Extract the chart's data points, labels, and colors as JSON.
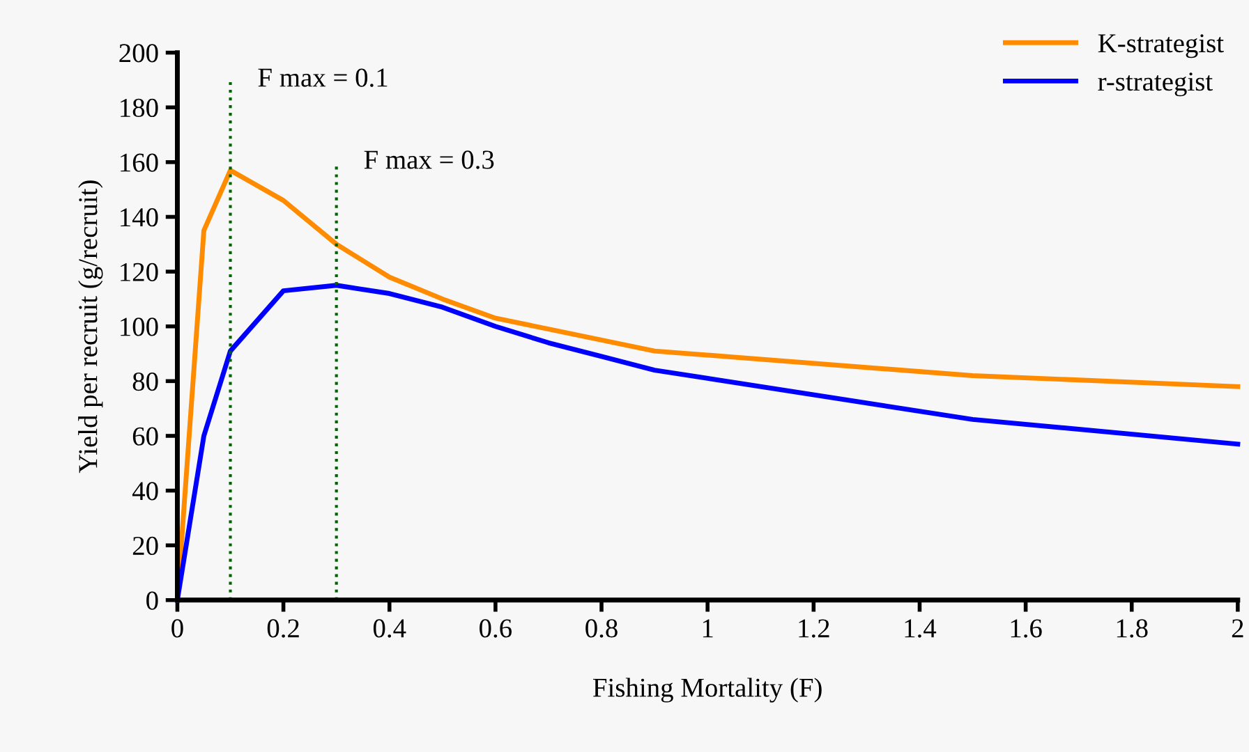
{
  "chart_data": {
    "type": "line",
    "xlabel": "Fishing Mortality (F)",
    "ylabel": "Yield per recruit (g/recruit)",
    "x": [
      0,
      0.05,
      0.1,
      0.2,
      0.3,
      0.4,
      0.5,
      0.6,
      0.7,
      0.8,
      0.9,
      1.5,
      2
    ],
    "series": [
      {
        "name": "K-strategist",
        "color": "#ff8c00",
        "values": [
          0,
          135,
          157,
          146,
          130,
          118,
          110,
          103,
          99,
          95,
          91,
          82,
          78
        ]
      },
      {
        "name": "r-strategist",
        "color": "#0000ff",
        "values": [
          0,
          60,
          91,
          113,
          115,
          112,
          107,
          100,
          94,
          89,
          84,
          66,
          57
        ]
      }
    ],
    "xlim": [
      0,
      2
    ],
    "xticks": [
      0,
      0.2,
      0.4,
      0.6,
      0.8,
      1,
      1.2,
      1.4,
      1.6,
      1.8,
      2
    ],
    "ylim": [
      0,
      200
    ],
    "yticks": [
      0,
      20,
      40,
      60,
      80,
      100,
      120,
      140,
      160,
      180,
      200
    ],
    "ref_lines": [
      {
        "axis": "x",
        "value": 0.1,
        "color": "#006400",
        "line_style": "dotted"
      },
      {
        "axis": "x",
        "value": 0.3,
        "color": "#006400",
        "line_style": "dotted"
      }
    ],
    "annotations": [
      {
        "text": "F max = 0.1",
        "x": 0.1,
        "y": 190
      },
      {
        "text": "F max = 0.3",
        "x": 0.3,
        "y": 160
      }
    ],
    "legend": "top right",
    "grid": false,
    "marker": "none",
    "line_style": "solid"
  }
}
